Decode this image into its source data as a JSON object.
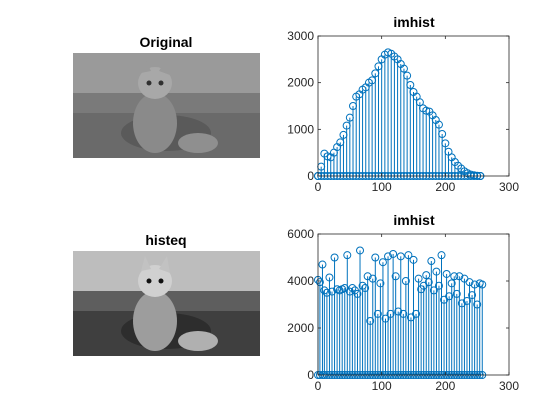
{
  "figure": {
    "background": "#ffffff",
    "series_color": "#0072BD"
  },
  "images": [
    {
      "title": "Original",
      "icon": "grayscale-cat-photo",
      "contrast": "low"
    },
    {
      "title": "histeq",
      "icon": "grayscale-cat-photo",
      "contrast": "high"
    }
  ],
  "chart_data": [
    {
      "type": "stem",
      "title": "imhist",
      "xlabel": "",
      "ylabel": "",
      "xlim": [
        0,
        300
      ],
      "ylim": [
        0,
        3000
      ],
      "xticks": [
        "0",
        "100",
        "200",
        "300"
      ],
      "yticks": [
        "0",
        "1000",
        "2000",
        "3000"
      ],
      "grid": false,
      "marker": "circle",
      "series": [
        {
          "x": [
            0,
            5,
            10,
            15,
            20,
            25,
            30,
            35,
            40,
            45,
            50,
            55,
            60,
            65,
            70,
            75,
            80,
            85,
            90,
            95,
            100,
            105,
            110,
            115,
            120,
            125,
            130,
            135,
            140,
            145,
            150,
            155,
            160,
            165,
            170,
            175,
            180,
            185,
            190,
            195,
            200,
            205,
            210,
            215,
            220,
            225,
            230,
            235,
            240,
            245,
            250,
            255
          ],
          "values": [
            0,
            200,
            480,
            420,
            400,
            500,
            620,
            720,
            880,
            1080,
            1250,
            1500,
            1700,
            1750,
            1850,
            1900,
            2000,
            2050,
            2200,
            2350,
            2500,
            2600,
            2650,
            2620,
            2560,
            2500,
            2400,
            2300,
            2150,
            1950,
            1800,
            1700,
            1580,
            1450,
            1400,
            1380,
            1300,
            1200,
            1100,
            900,
            700,
            520,
            400,
            300,
            220,
            160,
            100,
            60,
            30,
            15,
            5,
            0
          ]
        }
      ]
    },
    {
      "type": "stem",
      "title": "imhist",
      "xlabel": "",
      "ylabel": "",
      "xlim": [
        0,
        300
      ],
      "ylim": [
        0,
        6000
      ],
      "xticks": [
        "0",
        "100",
        "200",
        "300"
      ],
      "yticks": [
        "0",
        "2000",
        "4000",
        "6000"
      ],
      "grid": false,
      "marker": "circle",
      "series": [
        {
          "x": [
            0,
            3,
            7,
            10,
            14,
            18,
            22,
            26,
            30,
            34,
            38,
            42,
            46,
            50,
            54,
            58,
            62,
            66,
            70,
            74,
            78,
            82,
            86,
            90,
            94,
            98,
            102,
            106,
            110,
            114,
            118,
            122,
            126,
            130,
            134,
            138,
            142,
            146,
            150,
            154,
            158,
            162,
            166,
            170,
            174,
            178,
            182,
            186,
            190,
            194,
            198,
            202,
            206,
            210,
            214,
            218,
            222,
            226,
            230,
            234,
            238,
            242,
            246,
            250,
            254,
            258
          ],
          "values": [
            4050,
            3950,
            4700,
            3600,
            3500,
            4150,
            3550,
            5000,
            3650,
            3600,
            3650,
            3700,
            5100,
            3550,
            3700,
            3600,
            3450,
            5300,
            3800,
            3700,
            4200,
            2300,
            4100,
            5000,
            2600,
            3900,
            4800,
            2400,
            5050,
            2600,
            5150,
            4200,
            2700,
            5050,
            2600,
            4000,
            5100,
            2450,
            4900,
            2600,
            4100,
            3650,
            3800,
            4250,
            3950,
            4850,
            3600,
            4400,
            3800,
            5100,
            3200,
            4300,
            3350,
            3900,
            4200,
            3450,
            4200,
            3050,
            4100,
            3150,
            3950,
            3400,
            3850,
            3000,
            3900,
            3850
          ]
        }
      ]
    }
  ]
}
